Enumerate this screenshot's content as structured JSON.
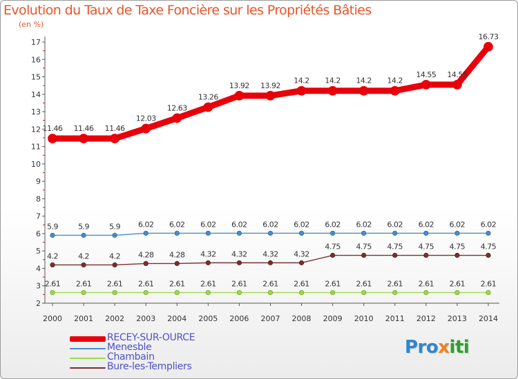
{
  "chart_data": {
    "type": "line",
    "title": "Evolution du Taux de Taxe Foncière sur les Propriétés Bâties",
    "ylabel": "(en %)",
    "xlabel": "",
    "ylim": [
      2,
      17
    ],
    "yticks": [
      "2",
      "3",
      "4",
      "5",
      "6",
      "7",
      "8",
      "9",
      "10",
      "11",
      "12",
      "13",
      "14",
      "15",
      "16",
      "17"
    ],
    "categories": [
      "2000",
      "2001",
      "2002",
      "2003",
      "2004",
      "2005",
      "2006",
      "2007",
      "2008",
      "2009",
      "2010",
      "2011",
      "2012",
      "2013",
      "2014"
    ],
    "series": [
      {
        "name": "RECEY-SUR-OURCE",
        "color": "#e8000b",
        "values": [
          11.46,
          11.46,
          11.46,
          12.03,
          12.63,
          13.26,
          13.92,
          13.92,
          14.2,
          14.2,
          14.2,
          14.2,
          14.55,
          14.55,
          16.73
        ],
        "labels": [
          "11.46",
          "11.46",
          "11.46",
          "12.03",
          "12.63",
          "13.26",
          "13.92",
          "13.92",
          "14.2",
          "14.2",
          "14.2",
          "14.2",
          "14.55",
          "14.55",
          "16.73"
        ]
      },
      {
        "name": "Menesble",
        "color": "#4a8cc8",
        "values": [
          5.9,
          5.9,
          5.9,
          6.02,
          6.02,
          6.02,
          6.02,
          6.02,
          6.02,
          6.02,
          6.02,
          6.02,
          6.02,
          6.02,
          6.02
        ],
        "labels": [
          "5.9",
          "5.9",
          "5.9",
          "6.02",
          "6.02",
          "6.02",
          "6.02",
          "6.02",
          "6.02",
          "6.02",
          "6.02",
          "6.02",
          "6.02",
          "6.02",
          "6.02"
        ]
      },
      {
        "name": "Chambain",
        "color": "#9ed84a",
        "values": [
          2.61,
          2.61,
          2.61,
          2.61,
          2.61,
          2.61,
          2.61,
          2.61,
          2.61,
          2.61,
          2.61,
          2.61,
          2.61,
          2.61,
          2.61
        ],
        "labels": [
          "2.61",
          "2.61",
          "2.61",
          "2.61",
          "2.61",
          "2.61",
          "2.61",
          "2.61",
          "2.61",
          "2.61",
          "2.61",
          "2.61",
          "2.61",
          "2.61",
          "2.61"
        ]
      },
      {
        "name": "Bure-les-Templiers",
        "color": "#7a2e2e",
        "values": [
          4.2,
          4.2,
          4.2,
          4.28,
          4.28,
          4.32,
          4.32,
          4.32,
          4.32,
          4.75,
          4.75,
          4.75,
          4.75,
          4.75,
          4.75
        ],
        "labels": [
          "4.2",
          "4.2",
          "4.2",
          "4.28",
          "4.28",
          "4.32",
          "4.32",
          "4.32",
          "4.32",
          "4.75",
          "4.75",
          "4.75",
          "4.75",
          "4.75",
          "4.75"
        ]
      }
    ],
    "legend": "bottom-left"
  },
  "brand": {
    "p1": "Pro",
    "p2": "x",
    "p3": "iti"
  }
}
